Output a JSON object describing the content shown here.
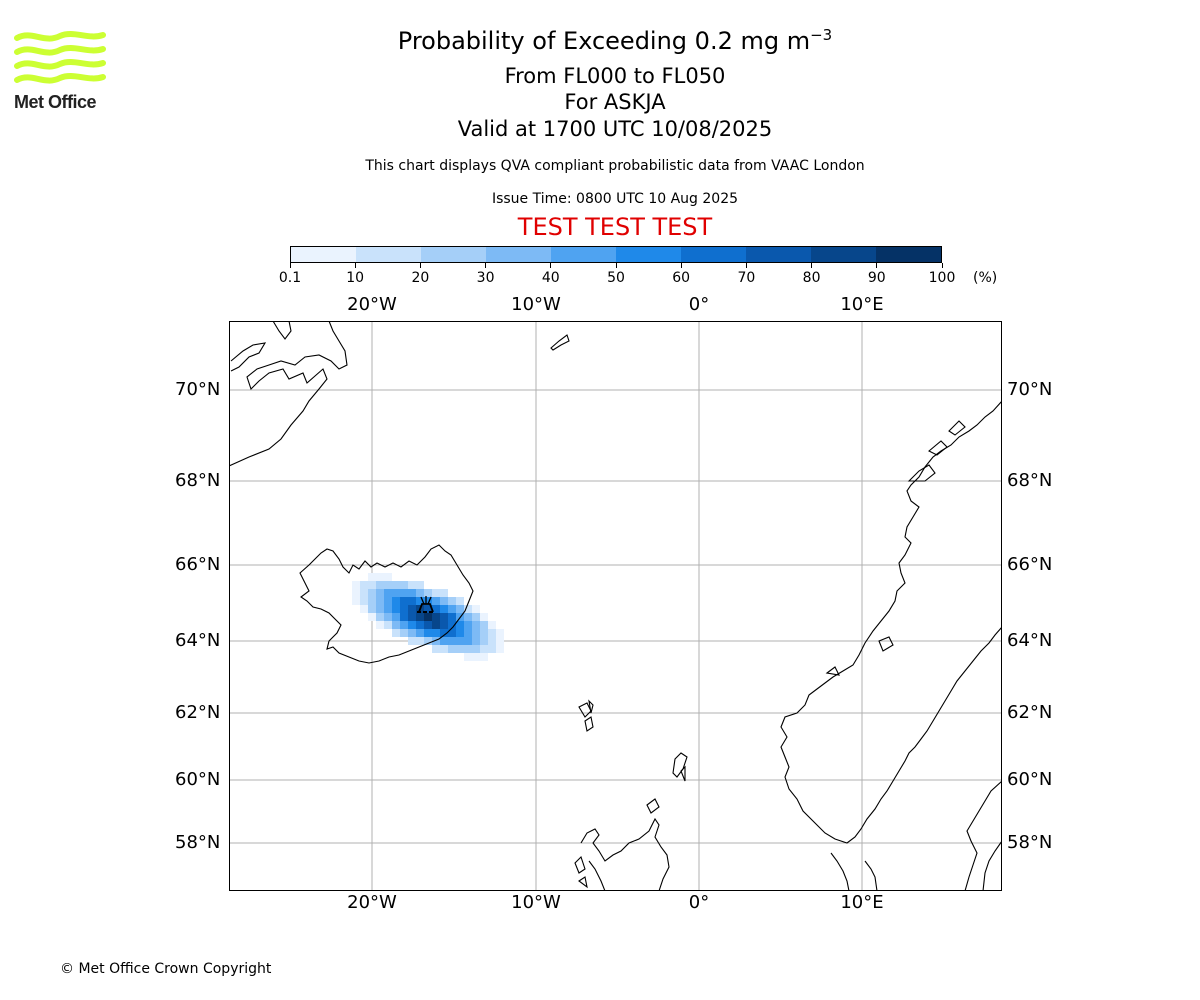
{
  "header": {
    "title_main": "Probability of Exceeding 0.2 mg m",
    "title_unit_exp": "−3",
    "subtitle_levels": "From FL000 to FL050",
    "subtitle_volcano": "For ASKJA",
    "subtitle_valid": "Valid at 1700 UTC 10/08/2025",
    "info_line": "This chart displays QVA compliant probabilistic data from VAAC London",
    "issue_time": "Issue Time: 0800 UTC 10 Aug 2025",
    "test_banner": "TEST TEST TEST"
  },
  "logo": {
    "text": "Met Office",
    "color": "#ccff33",
    "icon": "met-office-wave-logo"
  },
  "colorbar": {
    "ticks": [
      "0.1",
      "10",
      "20",
      "30",
      "40",
      "50",
      "60",
      "70",
      "80",
      "90",
      "100"
    ],
    "unit": "(%)",
    "colors": [
      "#eaf3fe",
      "#c9e2fb",
      "#a5cff8",
      "#7dbaf5",
      "#4fa3f1",
      "#1f89e9",
      "#0f6fcf",
      "#0a58ad",
      "#07468b",
      "#053266"
    ]
  },
  "map": {
    "lon_labels": [
      "20°W",
      "10°W",
      "0°",
      "10°E"
    ],
    "lat_labels": [
      "70°N",
      "68°N",
      "66°N",
      "64°N",
      "62°N",
      "60°N",
      "58°N"
    ],
    "volcano_marker": "volcano-icon"
  },
  "footer": {
    "copyright": "© Met Office Crown Copyright"
  }
}
